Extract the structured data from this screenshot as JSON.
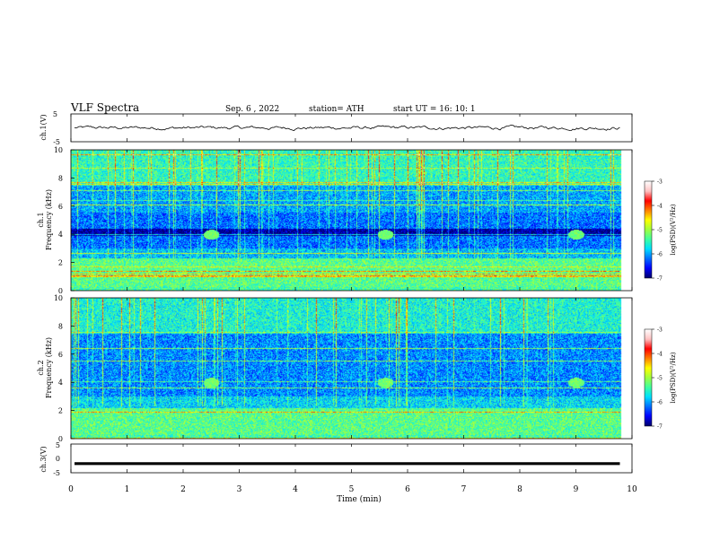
{
  "header": {
    "title": "VLF  Spectra",
    "date": "Sep. 6  , 2022",
    "station": "station= ATH",
    "start": "start  UT  =    16: 10: 1"
  },
  "chart_data": [
    {
      "type": "line",
      "name": "ch1-voltage",
      "ylabel": "ch.1(V)",
      "ylim": [
        -5,
        5
      ],
      "yticks": [
        "5",
        "-5"
      ],
      "trace_level": 0,
      "trace_jitter": 0.6
    },
    {
      "type": "heatmap",
      "name": "ch1-spectrogram",
      "ylabel": "ch.1\nFrequency  (kHz)",
      "ylim": [
        0,
        10
      ],
      "yticks": [
        "0",
        "2",
        "4",
        "6",
        "8",
        "10"
      ],
      "xlim": [
        0,
        10
      ],
      "data_x_end": 9.8,
      "colorbar": {
        "label": "log(PSD)(V²/Hz)",
        "range": [
          -7,
          -3
        ],
        "ticks": [
          "-3",
          "-4",
          "-5",
          "-6",
          "-7"
        ]
      },
      "bursts_min": [
        2.5,
        5.6,
        9.0
      ],
      "burst_freq_khz": 4.0,
      "bands_khz": [
        {
          "from": 0.0,
          "to": 0.3,
          "level": -5.4
        },
        {
          "from": 0.3,
          "to": 2.3,
          "level": -5.3
        },
        {
          "from": 2.3,
          "to": 3.0,
          "level": -5.9
        },
        {
          "from": 3.0,
          "to": 3.9,
          "level": -6.2
        },
        {
          "from": 3.9,
          "to": 4.4,
          "level": -6.9
        },
        {
          "from": 4.4,
          "to": 5.6,
          "level": -6.2
        },
        {
          "from": 5.6,
          "to": 7.5,
          "level": -6.0
        },
        {
          "from": 7.5,
          "to": 10.0,
          "level": -5.5
        }
      ]
    },
    {
      "type": "heatmap",
      "name": "ch2-spectrogram",
      "ylabel": "ch.2\nFrequency  (kHz)",
      "ylim": [
        0,
        10
      ],
      "yticks": [
        "0",
        "2",
        "4",
        "6",
        "8",
        "10"
      ],
      "xlim": [
        0,
        10
      ],
      "data_x_end": 9.8,
      "colorbar": {
        "label": "log(PSD)(V²/Hz)",
        "range": [
          -7,
          -3
        ],
        "ticks": [
          "-3",
          "-4",
          "-5",
          "-6",
          "-7"
        ]
      },
      "bursts_min": [
        2.5,
        5.6,
        9.0
      ],
      "burst_freq_khz": 4.0,
      "bands_khz": [
        {
          "from": 0.0,
          "to": 0.3,
          "level": -5.4
        },
        {
          "from": 0.3,
          "to": 2.2,
          "level": -5.3
        },
        {
          "from": 2.2,
          "to": 3.0,
          "level": -5.8
        },
        {
          "from": 3.0,
          "to": 5.0,
          "level": -6.1
        },
        {
          "from": 5.0,
          "to": 7.5,
          "level": -6.1
        },
        {
          "from": 7.5,
          "to": 10.0,
          "level": -5.6
        }
      ]
    },
    {
      "type": "line",
      "name": "ch3-voltage",
      "ylabel": "ch.3(V)",
      "ylim": [
        -5,
        5
      ],
      "yticks": [
        "5",
        "0",
        "-5"
      ],
      "trace_level": -1.8,
      "trace_jitter": 0.0
    }
  ],
  "xaxis": {
    "label": "Time  (min)",
    "range": [
      0,
      10
    ],
    "ticks": [
      "0",
      "1",
      "2",
      "3",
      "4",
      "5",
      "6",
      "7",
      "8",
      "9",
      "10"
    ]
  },
  "colors": {
    "colormap": [
      "#000070",
      "#0000ff",
      "#0070ff",
      "#00e0ff",
      "#40ffa0",
      "#a0ff40",
      "#ffff00",
      "#ff8000",
      "#ff0000",
      "#ffc0c0",
      "#ffffff"
    ]
  }
}
